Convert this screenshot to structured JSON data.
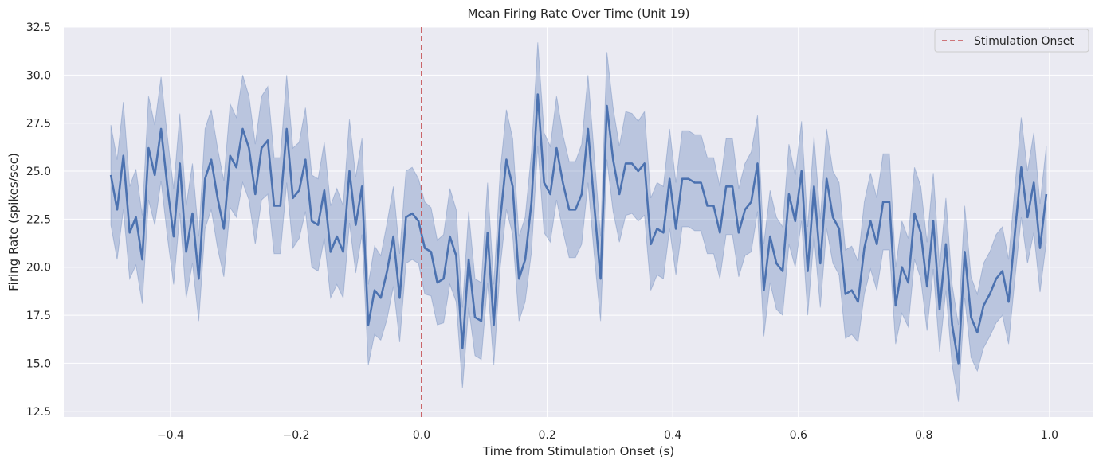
{
  "chart_data": {
    "type": "line",
    "title": "Mean Firing Rate Over Time (Unit 19)",
    "xlabel": "Time from Stimulation Onset (s)",
    "ylabel": "Firing Rate (spikes/sec)",
    "xlim": [
      -0.57,
      1.07
    ],
    "ylim": [
      12.2,
      32.5
    ],
    "xticks": [
      -0.4,
      -0.2,
      0.0,
      0.2,
      0.4,
      0.6,
      0.8,
      1.0
    ],
    "xtick_labels": [
      "−0.4",
      "−0.2",
      "0.0",
      "0.2",
      "0.4",
      "0.6",
      "0.8",
      "1.0"
    ],
    "yticks": [
      12.5,
      15.0,
      17.5,
      20.0,
      22.5,
      25.0,
      27.5,
      30.0,
      32.5
    ],
    "ytick_labels": [
      "12.5",
      "15.0",
      "17.5",
      "20.0",
      "22.5",
      "25.0",
      "27.5",
      "30.0",
      "32.5"
    ],
    "grid": true,
    "legend": {
      "position": "top-right",
      "entries": [
        "Stimulation Onset"
      ]
    },
    "colors": {
      "line": "#4c72b0",
      "band": "#4c72b0",
      "onset": "#c44e52",
      "axes_bg": "#eaeaf2",
      "grid": "#ffffff"
    },
    "onset_x": 0.0,
    "x": [
      -0.495,
      -0.485,
      -0.475,
      -0.465,
      -0.455,
      -0.445,
      -0.435,
      -0.425,
      -0.415,
      -0.405,
      -0.395,
      -0.385,
      -0.375,
      -0.365,
      -0.355,
      -0.345,
      -0.335,
      -0.325,
      -0.315,
      -0.305,
      -0.295,
      -0.285,
      -0.275,
      -0.265,
      -0.255,
      -0.245,
      -0.235,
      -0.225,
      -0.215,
      -0.205,
      -0.195,
      -0.185,
      -0.175,
      -0.165,
      -0.155,
      -0.145,
      -0.135,
      -0.125,
      -0.115,
      -0.105,
      -0.095,
      -0.085,
      -0.075,
      -0.065,
      -0.055,
      -0.045,
      -0.035,
      -0.025,
      -0.015,
      -0.005,
      0.005,
      0.015,
      0.025,
      0.035,
      0.045,
      0.055,
      0.065,
      0.075,
      0.085,
      0.095,
      0.105,
      0.115,
      0.125,
      0.135,
      0.145,
      0.155,
      0.165,
      0.175,
      0.185,
      0.195,
      0.205,
      0.215,
      0.225,
      0.235,
      0.245,
      0.255,
      0.265,
      0.275,
      0.285,
      0.295,
      0.305,
      0.315,
      0.325,
      0.335,
      0.345,
      0.355,
      0.365,
      0.375,
      0.385,
      0.395,
      0.405,
      0.415,
      0.425,
      0.435,
      0.445,
      0.455,
      0.465,
      0.475,
      0.485,
      0.495,
      0.505,
      0.515,
      0.525,
      0.535,
      0.545,
      0.555,
      0.565,
      0.575,
      0.585,
      0.595,
      0.605,
      0.615,
      0.625,
      0.635,
      0.645,
      0.655,
      0.665,
      0.675,
      0.685,
      0.695,
      0.705,
      0.715,
      0.725,
      0.735,
      0.745,
      0.755,
      0.765,
      0.775,
      0.785,
      0.795,
      0.805,
      0.815,
      0.825,
      0.835,
      0.845,
      0.855,
      0.865,
      0.875,
      0.885,
      0.895,
      0.905,
      0.915,
      0.925,
      0.935,
      0.945,
      0.955,
      0.965,
      0.975,
      0.985,
      0.995
    ],
    "series": [
      {
        "name": "Mean",
        "values": [
          24.8,
          23.0,
          25.8,
          21.8,
          22.6,
          20.4,
          26.2,
          24.8,
          27.2,
          24.2,
          21.6,
          25.4,
          20.8,
          22.8,
          19.4,
          24.6,
          25.6,
          23.6,
          22.0,
          25.8,
          25.2,
          27.2,
          26.2,
          23.8,
          26.2,
          26.6,
          23.2,
          23.2,
          27.2,
          23.6,
          24.0,
          25.6,
          22.4,
          22.2,
          24.0,
          20.8,
          21.6,
          20.8,
          25.0,
          22.2,
          24.2,
          17.0,
          18.8,
          18.4,
          19.8,
          21.6,
          18.4,
          22.6,
          22.8,
          22.4,
          21.0,
          20.8,
          19.2,
          19.4,
          21.6,
          20.6,
          15.8,
          20.4,
          17.4,
          17.2,
          21.8,
          17.0,
          22.4,
          25.6,
          24.2,
          19.4,
          20.4,
          23.4,
          29.0,
          24.4,
          23.8,
          26.2,
          24.4,
          23.0,
          23.0,
          23.8,
          27.2,
          23.2,
          19.4,
          28.4,
          25.6,
          23.8,
          25.4,
          25.4,
          25.0,
          25.4,
          21.2,
          22.0,
          21.8,
          24.6,
          22.0,
          24.6,
          24.6,
          24.4,
          24.4,
          23.2,
          23.2,
          21.8,
          24.2,
          24.2,
          21.8,
          23.0,
          23.4,
          25.4,
          18.8,
          21.6,
          20.2,
          19.8,
          23.8,
          22.4,
          25.0,
          19.8,
          24.2,
          20.2,
          24.6,
          22.6,
          22.0,
          18.6,
          18.8,
          18.2,
          21.0,
          22.4,
          21.2,
          23.4,
          23.4,
          18.0,
          20.0,
          19.2,
          22.8,
          21.8,
          19.0,
          22.4,
          17.8,
          21.2,
          17.0,
          15.0,
          20.8,
          17.4,
          16.6,
          18.0,
          18.6,
          19.4,
          19.8,
          18.2,
          21.8,
          25.2,
          22.6,
          24.4,
          21.0,
          23.8
        ]
      }
    ],
    "band_half_width": [
      2.6,
      2.6,
      2.8,
      2.4,
      2.5,
      2.3,
      2.7,
      2.6,
      2.7,
      2.6,
      2.5,
      2.6,
      2.4,
      2.6,
      2.2,
      2.6,
      2.6,
      2.6,
      2.5,
      2.7,
      2.6,
      2.8,
      2.7,
      2.6,
      2.7,
      2.8,
      2.5,
      2.5,
      2.8,
      2.6,
      2.5,
      2.7,
      2.4,
      2.4,
      2.5,
      2.4,
      2.5,
      2.4,
      2.7,
      2.5,
      2.5,
      2.1,
      2.3,
      2.2,
      2.5,
      2.6,
      2.3,
      2.4,
      2.4,
      2.2,
      2.4,
      2.3,
      2.2,
      2.3,
      2.5,
      2.4,
      2.1,
      2.5,
      2.0,
      2.0,
      2.6,
      2.1,
      2.5,
      2.6,
      2.5,
      2.2,
      2.2,
      2.6,
      2.7,
      2.6,
      2.5,
      2.7,
      2.5,
      2.5,
      2.5,
      2.6,
      2.8,
      2.6,
      2.2,
      2.8,
      2.7,
      2.5,
      2.7,
      2.6,
      2.6,
      2.7,
      2.4,
      2.4,
      2.4,
      2.6,
      2.4,
      2.5,
      2.5,
      2.5,
      2.5,
      2.5,
      2.5,
      2.4,
      2.5,
      2.5,
      2.3,
      2.4,
      2.6,
      2.5,
      2.4,
      2.4,
      2.4,
      2.3,
      2.6,
      2.4,
      2.6,
      2.3,
      2.6,
      2.3,
      2.6,
      2.4,
      2.4,
      2.3,
      2.3,
      2.1,
      2.4,
      2.5,
      2.4,
      2.5,
      2.5,
      2.0,
      2.4,
      2.3,
      2.4,
      2.4,
      2.3,
      2.5,
      2.2,
      2.4,
      2.1,
      2.0,
      2.4,
      2.1,
      2.0,
      2.2,
      2.2,
      2.3,
      2.3,
      2.2,
      2.4,
      2.6,
      2.4,
      2.6,
      2.3,
      2.5
    ]
  }
}
